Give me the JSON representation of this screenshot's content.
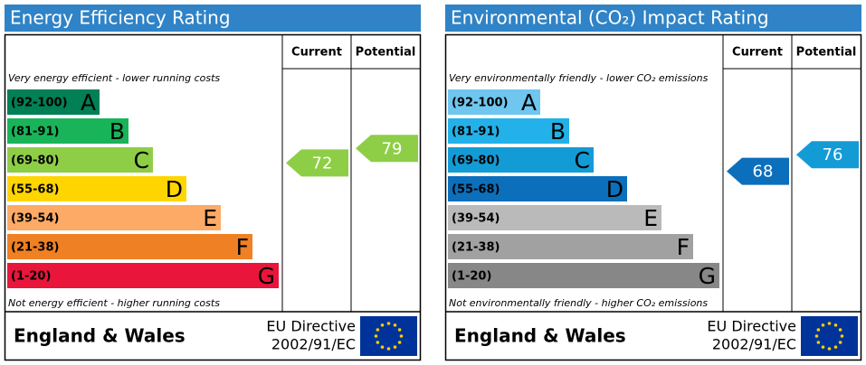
{
  "panels": [
    {
      "title": "Energy Efficiency Rating",
      "columns": [
        "Current",
        "Potential"
      ],
      "top_note": "Very energy efficient - lower running costs",
      "bottom_note": "Not energy efficient - higher running costs",
      "bands": [
        {
          "range": "(92-100)",
          "letter": "A",
          "color": "#008054"
        },
        {
          "range": "(81-91)",
          "letter": "B",
          "color": "#19b459"
        },
        {
          "range": "(69-80)",
          "letter": "C",
          "color": "#8dce46"
        },
        {
          "range": "(55-68)",
          "letter": "D",
          "color": "#ffd500"
        },
        {
          "range": "(39-54)",
          "letter": "E",
          "color": "#fcaa65"
        },
        {
          "range": "(21-38)",
          "letter": "F",
          "color": "#ef8023"
        },
        {
          "range": "(1-20)",
          "letter": "G",
          "color": "#e9153b"
        }
      ],
      "current": {
        "value": 72,
        "color": "#8dce46"
      },
      "potential": {
        "value": 79,
        "color": "#8dce46"
      },
      "region": "England & Wales",
      "directive": [
        "EU Directive",
        "2002/91/EC"
      ]
    },
    {
      "title": "Environmental (CO₂) Impact Rating",
      "columns": [
        "Current",
        "Potential"
      ],
      "top_note": "Very environmentally friendly - lower CO₂ emissions",
      "bottom_note": "Not environmentally friendly - higher CO₂ emissions",
      "bands": [
        {
          "range": "(92-100)",
          "letter": "A",
          "color": "#6fc6ef"
        },
        {
          "range": "(81-91)",
          "letter": "B",
          "color": "#22b1e8"
        },
        {
          "range": "(69-80)",
          "letter": "C",
          "color": "#139bd6"
        },
        {
          "range": "(55-68)",
          "letter": "D",
          "color": "#0c6fbc"
        },
        {
          "range": "(39-54)",
          "letter": "E",
          "color": "#bababa"
        },
        {
          "range": "(21-38)",
          "letter": "F",
          "color": "#a1a1a1"
        },
        {
          "range": "(1-20)",
          "letter": "G",
          "color": "#878787"
        }
      ],
      "current": {
        "value": 68,
        "color": "#0c6fbc"
      },
      "potential": {
        "value": 76,
        "color": "#139bd6"
      },
      "region": "England & Wales",
      "directive": [
        "EU Directive",
        "2002/91/EC"
      ]
    }
  ]
}
